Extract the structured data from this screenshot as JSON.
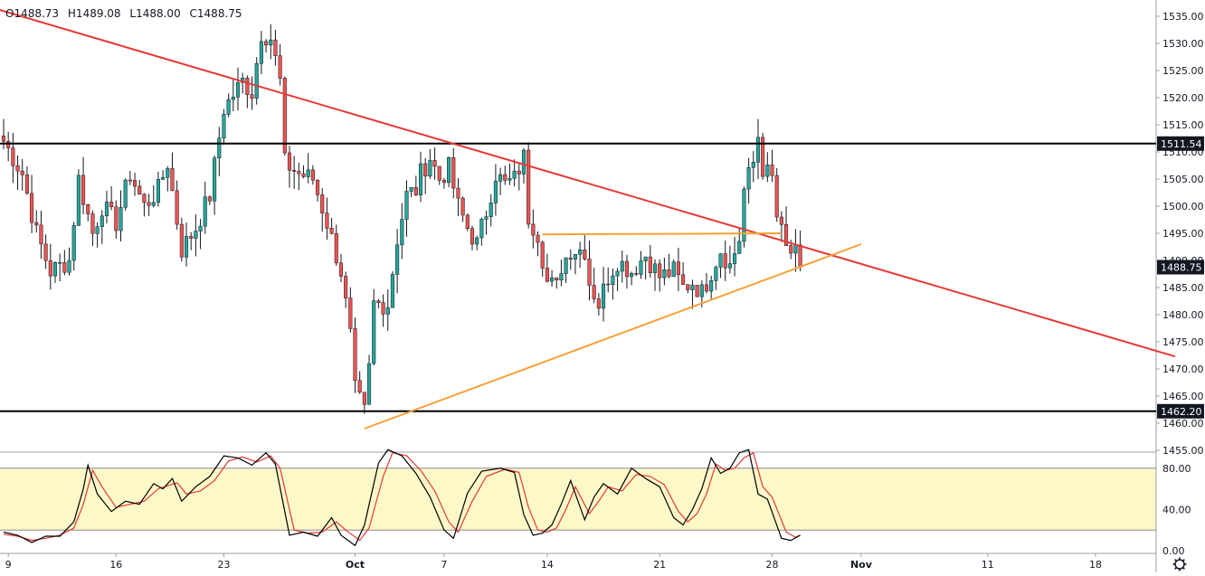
{
  "ohlc_header": {
    "open": "O1488.73",
    "high": "H1489.08",
    "low": "L1488.00",
    "close": "C1488.75"
  },
  "colors": {
    "up_candle": "#26a69a",
    "down_candle": "#ef5350",
    "wick": "#131722",
    "resistance_trendline": "#e53935",
    "support_trendline": "#f7a135",
    "horizontal_level": "#000000",
    "stoch_k": "#000000",
    "stoch_d": "#e53935",
    "stoch_band": "#fdf8c8",
    "price_tag_bg": "#131722",
    "price_tag_text": "#ffffff"
  },
  "chart_data": {
    "type": "candlestick",
    "price_axis": {
      "ticks": [
        1535,
        1530,
        1525,
        1520,
        1515,
        1510,
        1505,
        1500,
        1495,
        1490,
        1485,
        1480,
        1475,
        1470,
        1465,
        1460,
        1455
      ],
      "tick_labels": [
        "1535.00",
        "1530.00",
        "1525.00",
        "1520.00",
        "1515.00",
        "1510.00",
        "1505.00",
        "1500.00",
        "1495.00",
        "1490.00",
        "1485.00",
        "1480.00",
        "1475.00",
        "1470.00",
        "1465.00",
        "1460.00",
        "1455.00"
      ],
      "range": [
        1455,
        1538
      ]
    },
    "time_axis": {
      "labels": [
        "9",
        "16",
        "23",
        "Oct",
        "7",
        "14",
        "21",
        "28",
        "Nov",
        "11",
        "18"
      ],
      "range_bars": [
        0,
        246
      ]
    },
    "price_tags": [
      {
        "label": "1511.54",
        "value": 1511.54,
        "style": "level"
      },
      {
        "label": "1488.75",
        "value": 1488.75,
        "style": "last"
      },
      {
        "label": "1462.20",
        "value": 1462.2,
        "style": "level"
      }
    ],
    "horizontal_levels": [
      1511.54,
      1462.2
    ],
    "trendlines": [
      {
        "name": "resistance",
        "from": {
          "bar": -10,
          "price": 1538.5
        },
        "to": {
          "bar": 250,
          "price": 1472.3
        }
      },
      {
        "name": "support",
        "from": {
          "bar": 77,
          "price": 1459.0
        },
        "to": {
          "bar": 183,
          "price": 1493.0
        }
      },
      {
        "name": "flat-top",
        "from": {
          "bar": 115,
          "price": 1494.8
        },
        "to": {
          "bar": 166,
          "price": 1495.0
        }
      }
    ],
    "candles_path": [
      [
        0,
        1512
      ],
      [
        4,
        1506
      ],
      [
        7,
        1495
      ],
      [
        10,
        1488
      ],
      [
        14,
        1490
      ],
      [
        16,
        1505
      ],
      [
        19,
        1495
      ],
      [
        21,
        1500
      ],
      [
        24,
        1497
      ],
      [
        27,
        1506
      ],
      [
        30,
        1500
      ],
      [
        33,
        1503
      ],
      [
        35,
        1508
      ],
      [
        38,
        1492
      ],
      [
        41,
        1496
      ],
      [
        44,
        1502
      ],
      [
        47,
        1518
      ],
      [
        51,
        1523
      ],
      [
        53,
        1521
      ],
      [
        55,
        1532
      ],
      [
        57,
        1531
      ],
      [
        59,
        1523
      ],
      [
        60,
        1508
      ],
      [
        63,
        1506
      ],
      [
        66,
        1505
      ],
      [
        69,
        1497
      ],
      [
        72,
        1488
      ],
      [
        74,
        1476
      ],
      [
        75,
        1466
      ],
      [
        77,
        1462
      ],
      [
        78,
        1470
      ],
      [
        79,
        1482
      ],
      [
        82,
        1482
      ],
      [
        84,
        1494
      ],
      [
        86,
        1502
      ],
      [
        88,
        1503
      ],
      [
        89,
        1506
      ],
      [
        91,
        1509
      ],
      [
        93,
        1505
      ],
      [
        95,
        1507
      ],
      [
        97,
        1500
      ],
      [
        99,
        1496
      ],
      [
        101,
        1493
      ],
      [
        103,
        1499
      ],
      [
        105,
        1506
      ],
      [
        107,
        1504
      ],
      [
        109,
        1505
      ],
      [
        111,
        1509
      ],
      [
        112,
        1498
      ],
      [
        114,
        1495
      ],
      [
        116,
        1486
      ],
      [
        118,
        1485
      ],
      [
        119,
        1489
      ],
      [
        121,
        1492
      ],
      [
        124,
        1492
      ],
      [
        125,
        1486
      ],
      [
        127,
        1482
      ],
      [
        129,
        1487
      ],
      [
        131,
        1490
      ],
      [
        134,
        1488
      ],
      [
        137,
        1491
      ],
      [
        140,
        1487
      ],
      [
        143,
        1488
      ],
      [
        145,
        1485
      ],
      [
        147,
        1486
      ],
      [
        149,
        1484
      ],
      [
        151,
        1488
      ],
      [
        153,
        1492
      ],
      [
        155,
        1489
      ],
      [
        157,
        1494
      ],
      [
        158,
        1503
      ],
      [
        160,
        1508
      ],
      [
        161,
        1513
      ],
      [
        162,
        1507
      ],
      [
        164,
        1505
      ],
      [
        165,
        1498
      ],
      [
        167,
        1492
      ],
      [
        169,
        1491
      ],
      [
        170,
        1488.75
      ]
    ],
    "stochastic": {
      "levels": [
        80,
        40,
        20,
        0
      ],
      "level_labels": [
        "80.00",
        "40.00",
        "0.00"
      ],
      "range": [
        0,
        100
      ],
      "k_points": [
        [
          0,
          18
        ],
        [
          3,
          15
        ],
        [
          6,
          8
        ],
        [
          9,
          14
        ],
        [
          12,
          14
        ],
        [
          15,
          28
        ],
        [
          17,
          60
        ],
        [
          18,
          83
        ],
        [
          20,
          55
        ],
        [
          23,
          38
        ],
        [
          26,
          48
        ],
        [
          29,
          45
        ],
        [
          32,
          65
        ],
        [
          34,
          60
        ],
        [
          36,
          70
        ],
        [
          38,
          48
        ],
        [
          41,
          62
        ],
        [
          44,
          72
        ],
        [
          47,
          92
        ],
        [
          50,
          90
        ],
        [
          53,
          83
        ],
        [
          56,
          95
        ],
        [
          58,
          84
        ],
        [
          61,
          15
        ],
        [
          64,
          18
        ],
        [
          67,
          14
        ],
        [
          70,
          32
        ],
        [
          72,
          15
        ],
        [
          75,
          5
        ],
        [
          77,
          25
        ],
        [
          80,
          85
        ],
        [
          82,
          98
        ],
        [
          85,
          92
        ],
        [
          88,
          75
        ],
        [
          91,
          52
        ],
        [
          94,
          20
        ],
        [
          96,
          12
        ],
        [
          99,
          56
        ],
        [
          102,
          77
        ],
        [
          106,
          80
        ],
        [
          109,
          76
        ],
        [
          111,
          35
        ],
        [
          113,
          15
        ],
        [
          115,
          17
        ],
        [
          117,
          25
        ],
        [
          119,
          45
        ],
        [
          121,
          68
        ],
        [
          124,
          30
        ],
        [
          126,
          52
        ],
        [
          128,
          65
        ],
        [
          131,
          55
        ],
        [
          134,
          80
        ],
        [
          137,
          70
        ],
        [
          140,
          62
        ],
        [
          143,
          32
        ],
        [
          145,
          25
        ],
        [
          147,
          40
        ],
        [
          149,
          60
        ],
        [
          151,
          90
        ],
        [
          153,
          75
        ],
        [
          155,
          80
        ],
        [
          157,
          95
        ],
        [
          159,
          98
        ],
        [
          161,
          55
        ],
        [
          163,
          50
        ],
        [
          166,
          12
        ],
        [
          168,
          10
        ],
        [
          170,
          15
        ]
      ],
      "d_points": [
        [
          0,
          16
        ],
        [
          3,
          14
        ],
        [
          6,
          10
        ],
        [
          9,
          12
        ],
        [
          12,
          15
        ],
        [
          15,
          22
        ],
        [
          17,
          45
        ],
        [
          19,
          78
        ],
        [
          21,
          62
        ],
        [
          24,
          42
        ],
        [
          27,
          45
        ],
        [
          30,
          48
        ],
        [
          33,
          60
        ],
        [
          35,
          63
        ],
        [
          37,
          66
        ],
        [
          39,
          55
        ],
        [
          42,
          58
        ],
        [
          45,
          68
        ],
        [
          48,
          87
        ],
        [
          51,
          91
        ],
        [
          54,
          86
        ],
        [
          57,
          92
        ],
        [
          59,
          80
        ],
        [
          62,
          20
        ],
        [
          65,
          17
        ],
        [
          68,
          18
        ],
        [
          71,
          28
        ],
        [
          73,
          20
        ],
        [
          76,
          10
        ],
        [
          78,
          22
        ],
        [
          81,
          72
        ],
        [
          83,
          95
        ],
        [
          86,
          92
        ],
        [
          89,
          78
        ],
        [
          92,
          58
        ],
        [
          95,
          28
        ],
        [
          97,
          18
        ],
        [
          100,
          48
        ],
        [
          103,
          72
        ],
        [
          107,
          79
        ],
        [
          110,
          76
        ],
        [
          112,
          42
        ],
        [
          114,
          20
        ],
        [
          116,
          18
        ],
        [
          118,
          22
        ],
        [
          120,
          40
        ],
        [
          122,
          62
        ],
        [
          125,
          36
        ],
        [
          127,
          48
        ],
        [
          129,
          62
        ],
        [
          132,
          58
        ],
        [
          135,
          74
        ],
        [
          138,
          72
        ],
        [
          141,
          64
        ],
        [
          144,
          38
        ],
        [
          146,
          28
        ],
        [
          148,
          36
        ],
        [
          150,
          55
        ],
        [
          152,
          84
        ],
        [
          154,
          78
        ],
        [
          156,
          80
        ],
        [
          158,
          90
        ],
        [
          160,
          95
        ],
        [
          162,
          62
        ],
        [
          164,
          52
        ],
        [
          167,
          18
        ],
        [
          169,
          13
        ],
        [
          170,
          15
        ]
      ]
    }
  }
}
